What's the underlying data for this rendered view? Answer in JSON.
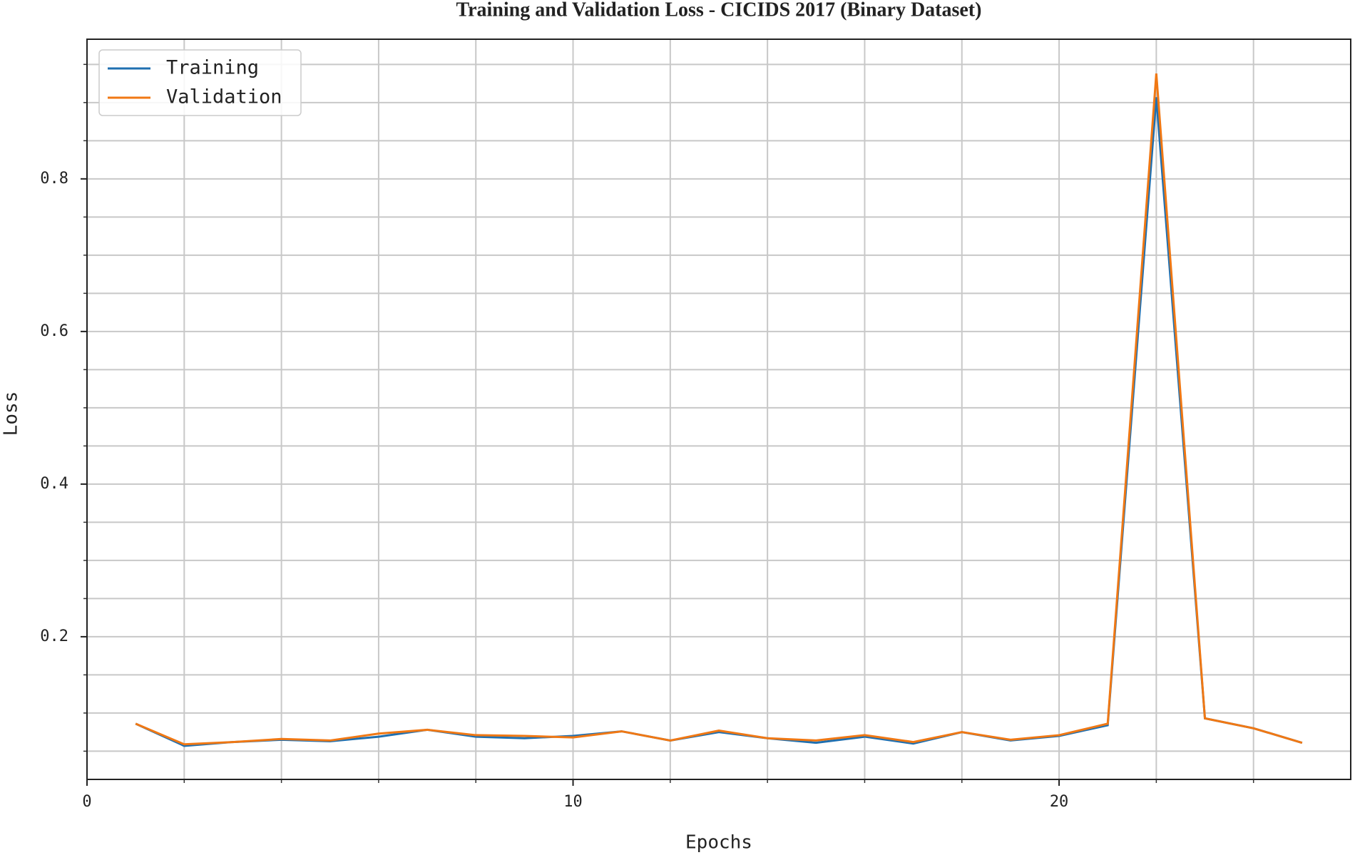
{
  "chart_data": {
    "type": "line",
    "title": "Training and Validation Loss - CICIDS 2017 (Binary Dataset)",
    "x_label": "Epochs",
    "y_label": "Loss",
    "x": [
      1,
      2,
      3,
      4,
      5,
      6,
      7,
      8,
      9,
      10,
      11,
      12,
      13,
      14,
      15,
      16,
      17,
      18,
      19,
      20,
      21,
      22,
      23,
      24,
      25
    ],
    "series": [
      {
        "name": "Training",
        "color": "#1f6fb0",
        "values": [
          0.086,
          0.057,
          0.062,
          0.065,
          0.063,
          0.069,
          0.078,
          0.069,
          0.067,
          0.07,
          0.076,
          0.064,
          0.075,
          0.067,
          0.061,
          0.069,
          0.06,
          0.075,
          0.064,
          0.07,
          0.084,
          0.907,
          0.093,
          0.08,
          0.061
        ]
      },
      {
        "name": "Validation",
        "color": "#f07814",
        "values": [
          0.086,
          0.059,
          0.062,
          0.066,
          0.064,
          0.073,
          0.078,
          0.071,
          0.07,
          0.068,
          0.076,
          0.064,
          0.077,
          0.067,
          0.064,
          0.071,
          0.062,
          0.075,
          0.065,
          0.071,
          0.086,
          0.938,
          0.093,
          0.08,
          0.061
        ]
      }
    ],
    "xlim": [
      0,
      26
    ],
    "ylim": [
      0.013,
      0.983
    ],
    "xticks": [
      0,
      10,
      20
    ],
    "yticks": [
      0.2,
      0.4,
      0.6,
      0.8
    ],
    "minor_xticks": [
      2,
      4,
      6,
      8,
      10,
      12,
      14,
      16,
      18,
      20,
      22,
      24
    ],
    "minor_yticks": [
      0.05,
      0.1,
      0.15,
      0.2,
      0.25,
      0.3,
      0.35,
      0.4,
      0.45,
      0.5,
      0.55,
      0.6,
      0.65,
      0.7,
      0.75,
      0.8,
      0.85,
      0.9,
      0.95
    ],
    "grid": true,
    "legend": "upper left"
  }
}
